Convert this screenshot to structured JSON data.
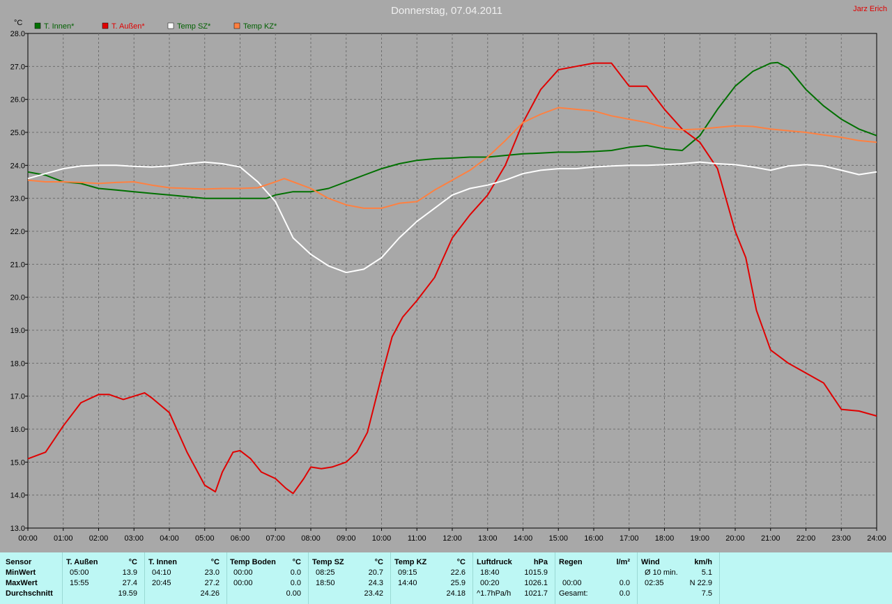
{
  "header": {
    "title": "Donnerstag, 07.04.2011",
    "author": "Jarz Erich",
    "unit": "°C"
  },
  "chart_data": {
    "type": "line",
    "title": "Donnerstag, 07.04.2011",
    "xlabel": "",
    "ylabel": "°C",
    "ylim": [
      13.0,
      28.0
    ],
    "xlim": [
      0,
      24
    ],
    "grid": true,
    "legend_placement": "top-left",
    "yticks": [
      "13.0",
      "14.0",
      "15.0",
      "16.0",
      "17.0",
      "18.0",
      "19.0",
      "20.0",
      "21.0",
      "22.0",
      "23.0",
      "24.0",
      "25.0",
      "26.0",
      "27.0",
      "28.0"
    ],
    "xticks": [
      "00:00",
      "01:00",
      "02:00",
      "03:00",
      "04:00",
      "05:00",
      "06:00",
      "07:00",
      "08:00",
      "09:00",
      "10:00",
      "11:00",
      "12:00",
      "13:00",
      "14:00",
      "15:00",
      "16:00",
      "17:00",
      "18:00",
      "19:00",
      "20:00",
      "21:00",
      "22:00",
      "23:00",
      "24:00"
    ],
    "series": [
      {
        "name": "T. Innen*",
        "color": "#007000",
        "points": [
          [
            0,
            23.8
          ],
          [
            0.5,
            23.7
          ],
          [
            1,
            23.5
          ],
          [
            1.5,
            23.45
          ],
          [
            2,
            23.3
          ],
          [
            2.5,
            23.25
          ],
          [
            3,
            23.2
          ],
          [
            3.5,
            23.15
          ],
          [
            4,
            23.1
          ],
          [
            4.5,
            23.05
          ],
          [
            5,
            23.0
          ],
          [
            5.5,
            23.0
          ],
          [
            6,
            23.0
          ],
          [
            6.5,
            23.0
          ],
          [
            6.75,
            23.0
          ],
          [
            7,
            23.1
          ],
          [
            7.5,
            23.2
          ],
          [
            8,
            23.2
          ],
          [
            8.5,
            23.3
          ],
          [
            9,
            23.5
          ],
          [
            9.5,
            23.7
          ],
          [
            10,
            23.9
          ],
          [
            10.5,
            24.05
          ],
          [
            11,
            24.15
          ],
          [
            11.5,
            24.2
          ],
          [
            12,
            24.22
          ],
          [
            12.5,
            24.25
          ],
          [
            13,
            24.25
          ],
          [
            13.5,
            24.3
          ],
          [
            14,
            24.35
          ],
          [
            14.5,
            24.37
          ],
          [
            15,
            24.4
          ],
          [
            15.5,
            24.4
          ],
          [
            16,
            24.42
          ],
          [
            16.5,
            24.45
          ],
          [
            17,
            24.55
          ],
          [
            17.5,
            24.6
          ],
          [
            18,
            24.5
          ],
          [
            18.5,
            24.45
          ],
          [
            19,
            24.9
          ],
          [
            19.5,
            25.7
          ],
          [
            20,
            26.4
          ],
          [
            20.5,
            26.85
          ],
          [
            21,
            27.1
          ],
          [
            21.2,
            27.12
          ],
          [
            21.5,
            26.95
          ],
          [
            22,
            26.3
          ],
          [
            22.5,
            25.8
          ],
          [
            23,
            25.4
          ],
          [
            23.5,
            25.1
          ],
          [
            24,
            24.9
          ]
        ]
      },
      {
        "name": "T. Außen*",
        "color": "#e00000",
        "points": [
          [
            0,
            15.1
          ],
          [
            0.5,
            15.3
          ],
          [
            1,
            16.1
          ],
          [
            1.5,
            16.8
          ],
          [
            2,
            17.05
          ],
          [
            2.3,
            17.05
          ],
          [
            2.7,
            16.9
          ],
          [
            3,
            17.0
          ],
          [
            3.3,
            17.1
          ],
          [
            3.5,
            16.95
          ],
          [
            4,
            16.5
          ],
          [
            4.5,
            15.3
          ],
          [
            5,
            14.3
          ],
          [
            5.3,
            14.1
          ],
          [
            5.5,
            14.7
          ],
          [
            5.8,
            15.3
          ],
          [
            6,
            15.35
          ],
          [
            6.3,
            15.1
          ],
          [
            6.6,
            14.7
          ],
          [
            7,
            14.5
          ],
          [
            7.3,
            14.2
          ],
          [
            7.5,
            14.05
          ],
          [
            7.8,
            14.5
          ],
          [
            8,
            14.85
          ],
          [
            8.3,
            14.8
          ],
          [
            8.6,
            14.85
          ],
          [
            9,
            15.0
          ],
          [
            9.3,
            15.3
          ],
          [
            9.6,
            15.9
          ],
          [
            10,
            17.6
          ],
          [
            10.3,
            18.8
          ],
          [
            10.6,
            19.4
          ],
          [
            11,
            19.9
          ],
          [
            11.5,
            20.6
          ],
          [
            12,
            21.8
          ],
          [
            12.5,
            22.5
          ],
          [
            13,
            23.1
          ],
          [
            13.5,
            24.0
          ],
          [
            14,
            25.3
          ],
          [
            14.5,
            26.3
          ],
          [
            15,
            26.9
          ],
          [
            15.5,
            27.0
          ],
          [
            16,
            27.1
          ],
          [
            16.5,
            27.1
          ],
          [
            17,
            26.4
          ],
          [
            17.5,
            26.4
          ],
          [
            18,
            25.7
          ],
          [
            18.5,
            25.1
          ],
          [
            19,
            24.7
          ],
          [
            19.5,
            23.9
          ],
          [
            20,
            22.0
          ],
          [
            20.3,
            21.2
          ],
          [
            20.6,
            19.6
          ],
          [
            21,
            18.4
          ],
          [
            21.5,
            18.0
          ],
          [
            22,
            17.7
          ],
          [
            22.5,
            17.4
          ],
          [
            23,
            16.6
          ],
          [
            23.5,
            16.55
          ],
          [
            24,
            16.4
          ]
        ]
      },
      {
        "name": "Temp SZ*",
        "color": "#ffffff",
        "points": [
          [
            0,
            23.6
          ],
          [
            0.5,
            23.75
          ],
          [
            1,
            23.9
          ],
          [
            1.5,
            23.98
          ],
          [
            2,
            24.0
          ],
          [
            2.5,
            24.0
          ],
          [
            3,
            23.97
          ],
          [
            3.5,
            23.95
          ],
          [
            4,
            23.98
          ],
          [
            4.5,
            24.05
          ],
          [
            5,
            24.1
          ],
          [
            5.5,
            24.05
          ],
          [
            6,
            23.95
          ],
          [
            6.5,
            23.5
          ],
          [
            7,
            22.9
          ],
          [
            7.5,
            21.8
          ],
          [
            8,
            21.3
          ],
          [
            8.5,
            20.95
          ],
          [
            9,
            20.75
          ],
          [
            9.5,
            20.85
          ],
          [
            10,
            21.2
          ],
          [
            10.5,
            21.8
          ],
          [
            11,
            22.3
          ],
          [
            11.5,
            22.7
          ],
          [
            12,
            23.1
          ],
          [
            12.5,
            23.3
          ],
          [
            13,
            23.4
          ],
          [
            13.5,
            23.55
          ],
          [
            14,
            23.75
          ],
          [
            14.5,
            23.85
          ],
          [
            15,
            23.9
          ],
          [
            15.5,
            23.9
          ],
          [
            16,
            23.95
          ],
          [
            16.5,
            23.98
          ],
          [
            17,
            24.0
          ],
          [
            17.5,
            24.0
          ],
          [
            18,
            24.02
          ],
          [
            18.5,
            24.05
          ],
          [
            19,
            24.1
          ],
          [
            19.5,
            24.05
          ],
          [
            20,
            24.02
          ],
          [
            20.5,
            23.95
          ],
          [
            21,
            23.85
          ],
          [
            21.5,
            23.98
          ],
          [
            22,
            24.02
          ],
          [
            22.5,
            23.98
          ],
          [
            23,
            23.85
          ],
          [
            23.5,
            23.72
          ],
          [
            24,
            23.8
          ]
        ]
      },
      {
        "name": "Temp KZ*",
        "color": "#ff8040",
        "points": [
          [
            0,
            23.55
          ],
          [
            0.5,
            23.5
          ],
          [
            1,
            23.5
          ],
          [
            1.5,
            23.48
          ],
          [
            2,
            23.45
          ],
          [
            2.5,
            23.48
          ],
          [
            3,
            23.5
          ],
          [
            3.5,
            23.4
          ],
          [
            4,
            23.32
          ],
          [
            4.5,
            23.3
          ],
          [
            5,
            23.28
          ],
          [
            5.5,
            23.3
          ],
          [
            6,
            23.3
          ],
          [
            6.5,
            23.32
          ],
          [
            7,
            23.5
          ],
          [
            7.25,
            23.6
          ],
          [
            7.5,
            23.5
          ],
          [
            8,
            23.3
          ],
          [
            8.5,
            23.0
          ],
          [
            9,
            22.8
          ],
          [
            9.5,
            22.7
          ],
          [
            10,
            22.7
          ],
          [
            10.5,
            22.85
          ],
          [
            11,
            22.9
          ],
          [
            11.5,
            23.25
          ],
          [
            12,
            23.55
          ],
          [
            12.5,
            23.85
          ],
          [
            13,
            24.25
          ],
          [
            13.5,
            24.75
          ],
          [
            14,
            25.3
          ],
          [
            14.5,
            25.55
          ],
          [
            15,
            25.75
          ],
          [
            15.5,
            25.7
          ],
          [
            16,
            25.65
          ],
          [
            16.5,
            25.5
          ],
          [
            17,
            25.4
          ],
          [
            17.5,
            25.3
          ],
          [
            18,
            25.15
          ],
          [
            18.5,
            25.08
          ],
          [
            19,
            25.1
          ],
          [
            19.5,
            25.15
          ],
          [
            20,
            25.2
          ],
          [
            20.5,
            25.18
          ],
          [
            21,
            25.1
          ],
          [
            21.5,
            25.05
          ],
          [
            22,
            25.0
          ],
          [
            22.5,
            24.92
          ],
          [
            23,
            24.85
          ],
          [
            23.5,
            24.75
          ],
          [
            24,
            24.7
          ]
        ]
      }
    ]
  },
  "footer": {
    "row_labels": [
      "Sensor",
      "MinWert",
      "MaxWert",
      "Durchschnitt"
    ],
    "columns": [
      {
        "name": "T. Außen",
        "unit": "°C",
        "min_time": "05:00",
        "min_val": "13.9",
        "max_time": "15:55",
        "max_val": "27.4",
        "avg": "19.59"
      },
      {
        "name": "T. Innen",
        "unit": "°C",
        "min_time": "04:10",
        "min_val": "23.0",
        "max_time": "20:45",
        "max_val": "27.2",
        "avg": "24.26"
      },
      {
        "name": "Temp Boden",
        "unit": "°C",
        "min_time": "00:00",
        "min_val": "0.0",
        "max_time": "00:00",
        "max_val": "0.0",
        "avg": "0.00"
      },
      {
        "name": "Temp SZ",
        "unit": "°C",
        "min_time": "08:25",
        "min_val": "20.7",
        "max_time": "18:50",
        "max_val": "24.3",
        "avg": "23.42"
      },
      {
        "name": "Temp KZ",
        "unit": "°C",
        "min_time": "09:15",
        "min_val": "22.6",
        "max_time": "14:40",
        "max_val": "25.9",
        "avg": "24.18"
      },
      {
        "name": "Luftdruck",
        "unit": "hPa",
        "min_time": "18:40",
        "min_val": "1015.9",
        "max_time": "00:20",
        "max_val": "1026.1",
        "avg_label": "^1.7hPa/h",
        "avg": "1021.7"
      },
      {
        "name": "Regen",
        "unit": "l/m²",
        "min_time": "",
        "min_val": "",
        "max_time": "00:00",
        "max_val": "0.0",
        "avg_label": "Gesamt:",
        "avg": "0.0"
      },
      {
        "name": "Wind",
        "unit": "km/h",
        "min_time": "Ø 10 min.",
        "min_val": "5.1",
        "max_time": "02:35",
        "max_val": "N 22.9",
        "avg": "7.5"
      }
    ]
  }
}
